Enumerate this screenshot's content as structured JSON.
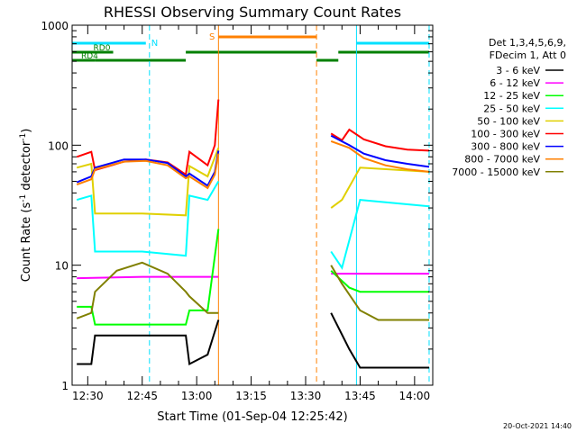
{
  "chart_data": {
    "type": "line",
    "title": "RHESSI Observing Summary Count Rates",
    "xlabel": "Start Time (01-Sep-04 12:25:42)",
    "ylabel_parts": [
      "Count Rate (s",
      "-1",
      " detector",
      "-1",
      ")"
    ],
    "y_scale": "log",
    "ylim": [
      1,
      1000
    ],
    "y_ticks": [
      "1",
      "10",
      "100",
      "1000"
    ],
    "x_range_minutes": [
      "12:25:42",
      "14:05:00"
    ],
    "x_ticks": [
      "12:30",
      "12:45",
      "13:00",
      "13:15",
      "13:30",
      "13:45",
      "14:00"
    ],
    "grid": false,
    "legend_placement": "right",
    "legend_header": [
      "Det 1,3,4,5,6,9,",
      "FDecim 1, Att 0"
    ],
    "footer_date": "20-Oct-2021 14:40",
    "data_gap": [
      "13:06",
      "13:37"
    ],
    "series": [
      {
        "name": "3 - 6 keV",
        "color": "#000000",
        "t": [
          "12:27",
          "12:31",
          "12:32",
          "12:45",
          "12:57",
          "12:58",
          "13:03",
          "13:06",
          "13:37",
          "13:42",
          "13:45",
          "14:04"
        ],
        "values": [
          1.5,
          1.5,
          2.6,
          2.6,
          2.6,
          1.5,
          1.8,
          3.5,
          4.0,
          2.0,
          1.4,
          1.4
        ]
      },
      {
        "name": "6 - 12 keV",
        "color": "#ff00ff",
        "t": [
          "12:27",
          "12:45",
          "13:00",
          "13:06",
          "13:37",
          "13:45",
          "14:04"
        ],
        "values": [
          7.8,
          8.0,
          8.0,
          8.0,
          8.5,
          8.5,
          8.5
        ]
      },
      {
        "name": "12 - 25 keV",
        "color": "#00ff00",
        "t": [
          "12:27",
          "12:31",
          "12:32",
          "12:45",
          "12:57",
          "12:58",
          "13:03",
          "13:06",
          "13:37",
          "13:42",
          "13:45",
          "14:04"
        ],
        "values": [
          4.5,
          4.5,
          3.2,
          3.2,
          3.2,
          4.2,
          4.2,
          20,
          9.0,
          6.5,
          6.0,
          6.0
        ]
      },
      {
        "name": "25 - 50 keV",
        "color": "#00ffff",
        "t": [
          "12:27",
          "12:31",
          "12:32",
          "12:45",
          "12:57",
          "12:58",
          "13:03",
          "13:06",
          "13:37",
          "13:40",
          "13:45",
          "14:04"
        ],
        "values": [
          35,
          38,
          13,
          13,
          12,
          38,
          35,
          50,
          13,
          9.5,
          35,
          31
        ]
      },
      {
        "name": "50 - 100 keV",
        "color": "#e0d000",
        "t": [
          "12:27",
          "12:31",
          "12:32",
          "12:45",
          "12:57",
          "12:58",
          "13:03",
          "13:06",
          "13:37",
          "13:40",
          "13:45",
          "14:04"
        ],
        "values": [
          65,
          70,
          27,
          27,
          26,
          67,
          55,
          95,
          30,
          35,
          65,
          60
        ]
      },
      {
        "name": "100 - 300 keV",
        "color": "#ff0000",
        "t": [
          "12:27",
          "12:31",
          "12:32",
          "12:40",
          "12:46",
          "12:52",
          "12:57",
          "12:58",
          "13:03",
          "13:05",
          "13:06",
          "13:37",
          "13:40",
          "13:42",
          "13:46",
          "13:52",
          "13:58",
          "14:04"
        ],
        "values": [
          80,
          88,
          62,
          73,
          76,
          72,
          57,
          88,
          68,
          100,
          240,
          125,
          110,
          135,
          112,
          98,
          92,
          90
        ]
      },
      {
        "name": "300 - 800 keV",
        "color": "#0000ff",
        "t": [
          "12:27",
          "12:31",
          "12:32",
          "12:40",
          "12:46",
          "12:52",
          "12:57",
          "12:58",
          "13:03",
          "13:05",
          "13:06",
          "13:37",
          "13:42",
          "13:46",
          "13:52",
          "13:58",
          "14:04"
        ],
        "values": [
          49,
          55,
          65,
          76,
          76,
          71,
          55,
          58,
          46,
          60,
          90,
          120,
          100,
          85,
          75,
          70,
          66
        ]
      },
      {
        "name": "800 - 7000 keV",
        "color": "#ff8000",
        "t": [
          "12:27",
          "12:31",
          "12:32",
          "12:40",
          "12:46",
          "12:52",
          "12:57",
          "12:58",
          "13:03",
          "13:05",
          "13:06",
          "13:37",
          "13:42",
          "13:46",
          "13:52",
          "13:58",
          "14:04"
        ],
        "values": [
          47,
          52,
          63,
          73,
          74,
          68,
          53,
          55,
          44,
          57,
          85,
          108,
          95,
          78,
          68,
          63,
          60
        ]
      },
      {
        "name": "7000 - 15000 keV",
        "color": "#808000",
        "t": [
          "12:27",
          "12:31",
          "12:32",
          "12:38",
          "12:45",
          "12:52",
          "12:57",
          "12:58",
          "13:03",
          "13:06",
          "13:37",
          "13:40",
          "13:45",
          "13:50",
          "14:04"
        ],
        "values": [
          3.6,
          4.0,
          6.0,
          9.0,
          10.5,
          8.5,
          6.0,
          5.5,
          4.0,
          4.0,
          10.0,
          7.0,
          4.2,
          3.5,
          3.5
        ]
      }
    ],
    "annotations": {
      "saa_marks": [
        {
          "label": "S",
          "color": "#ff8000",
          "start": "13:06",
          "end": "13:33"
        }
      ],
      "night_marks": [
        {
          "label": "N",
          "color": "#00e0ff",
          "start": "12:25:42",
          "end": "12:46"
        },
        {
          "label": "",
          "color": "#00e0ff",
          "start": "13:44",
          "end": "14:04"
        }
      ],
      "decimation_marks": [
        {
          "label": "RD0",
          "color": "#008000",
          "start": "12:25:42",
          "end": "12:37",
          "level": "upper"
        },
        {
          "label": "RD4",
          "color": "#008000",
          "start": "12:25:42",
          "end": "12:32",
          "level": "lower"
        },
        {
          "label": "",
          "color": "#008000",
          "start": "12:32",
          "end": "12:57",
          "level": "lower"
        },
        {
          "label": "",
          "color": "#008000",
          "start": "12:57",
          "end": "13:33",
          "level": "upper"
        },
        {
          "label": "",
          "color": "#008000",
          "start": "13:33",
          "end": "13:39",
          "level": "lower"
        },
        {
          "label": "",
          "color": "#008000",
          "start": "13:39",
          "end": "14:04",
          "level": "upper"
        }
      ],
      "vertical_lines": [
        {
          "t": "12:47",
          "color": "#00e0ff",
          "style": "dashed"
        },
        {
          "t": "13:06",
          "color": "#ff8000",
          "style": "solid"
        },
        {
          "t": "13:33",
          "color": "#ff8000",
          "style": "dashed"
        },
        {
          "t": "13:44",
          "color": "#00e0ff",
          "style": "solid"
        },
        {
          "t": "14:04",
          "color": "#00e0ff",
          "style": "dashed"
        }
      ]
    }
  }
}
